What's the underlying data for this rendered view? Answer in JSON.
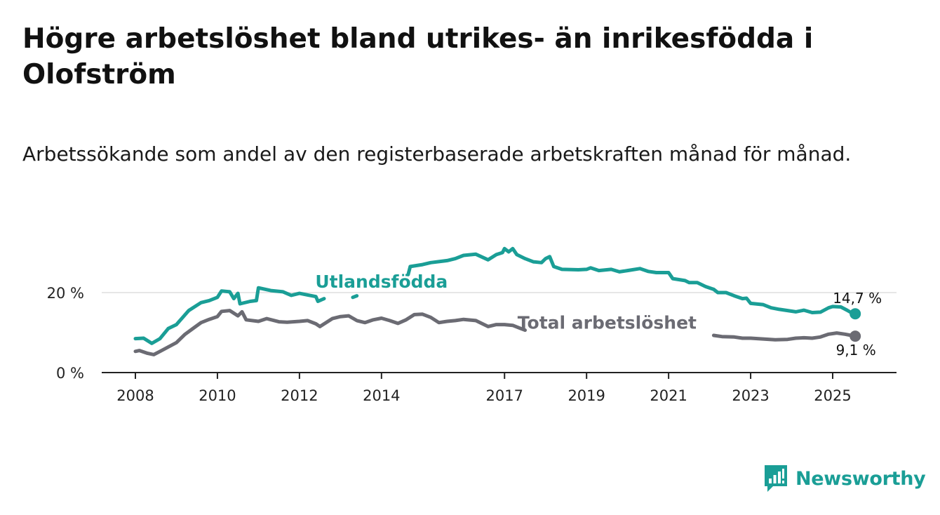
{
  "title": "Högre arbetslöshet bland utrikes- än inrikesfödda i Olofström",
  "subtitle": "Arbetssökande som andel av den registerbaserade arbetskraften månad för månad.",
  "brand": {
    "name": "Newsworthy",
    "icon": "bar-chart-logo-icon"
  },
  "colors": {
    "utlandsfodda": "#1a9e96",
    "total": "#6b6b73",
    "axis": "#222222",
    "grid": "#dddddd"
  },
  "chart_data": {
    "type": "line",
    "title": "Högre arbetslöshet bland utrikes- än inrikesfödda i Olofström",
    "xlabel": "",
    "ylabel": "",
    "xlim": [
      2007.9,
      2025.8
    ],
    "ylim": [
      0,
      30
    ],
    "x_ticks": [
      2008,
      2010,
      2012,
      2014,
      2017,
      2019,
      2021,
      2023,
      2025
    ],
    "x_tick_labels": [
      "2008",
      "2010",
      "2012",
      "2014",
      "2017",
      "2019",
      "2021",
      "2023",
      "2025"
    ],
    "y_ticks": [
      0,
      20
    ],
    "y_tick_labels": [
      "0 %",
      "20 %"
    ],
    "grid": true,
    "series": [
      {
        "name": "Utlandsfödda",
        "color": "#1a9e96",
        "end_label": "14,7 %",
        "points": [
          [
            2008.0,
            8.5
          ],
          [
            2008.2,
            8.6
          ],
          [
            2008.4,
            7.3
          ],
          [
            2008.6,
            8.5
          ],
          [
            2008.8,
            11.0
          ],
          [
            2009.0,
            12.0
          ],
          [
            2009.3,
            15.5
          ],
          [
            2009.6,
            17.5
          ],
          [
            2009.8,
            18.0
          ],
          [
            2010.0,
            18.8
          ],
          [
            2010.1,
            20.4
          ],
          [
            2010.3,
            20.2
          ],
          [
            2010.4,
            18.5
          ],
          [
            2010.5,
            19.8
          ],
          [
            2010.55,
            17.2
          ],
          [
            2010.8,
            17.8
          ],
          [
            2010.95,
            18.0
          ],
          [
            2011.0,
            21.2
          ],
          [
            2011.3,
            20.5
          ],
          [
            2011.6,
            20.2
          ],
          [
            2011.8,
            19.3
          ],
          [
            2012.0,
            19.8
          ],
          [
            2012.2,
            19.4
          ],
          [
            2012.4,
            19.0
          ],
          [
            2012.45,
            17.8
          ],
          [
            2012.6,
            18.5
          ]
        ],
        "segments": [
          [
            [
              2013.3,
              18.8
            ],
            [
              2013.4,
              19.2
            ]
          ],
          [
            [
              2014.65,
              24.5
            ],
            [
              2014.7,
              26.5
            ],
            [
              2015.0,
              27.0
            ],
            [
              2015.2,
              27.5
            ],
            [
              2015.6,
              28.0
            ],
            [
              2015.8,
              28.5
            ],
            [
              2016.0,
              29.3
            ],
            [
              2016.3,
              29.6
            ],
            [
              2016.6,
              28.2
            ],
            [
              2016.8,
              29.5
            ],
            [
              2016.95,
              30.0
            ],
            [
              2017.0,
              31.0
            ],
            [
              2017.1,
              30.2
            ],
            [
              2017.2,
              31.0
            ],
            [
              2017.3,
              29.5
            ],
            [
              2017.5,
              28.5
            ],
            [
              2017.7,
              27.7
            ],
            [
              2017.9,
              27.5
            ],
            [
              2018.0,
              28.5
            ],
            [
              2018.1,
              29.0
            ],
            [
              2018.2,
              26.5
            ],
            [
              2018.4,
              25.8
            ],
            [
              2018.8,
              25.7
            ],
            [
              2019.0,
              25.8
            ],
            [
              2019.1,
              26.2
            ],
            [
              2019.3,
              25.5
            ],
            [
              2019.6,
              25.8
            ],
            [
              2019.8,
              25.2
            ],
            [
              2020.0,
              25.5
            ],
            [
              2020.3,
              26.0
            ],
            [
              2020.5,
              25.3
            ],
            [
              2020.7,
              25.0
            ],
            [
              2021.0,
              25.0
            ],
            [
              2021.1,
              23.5
            ],
            [
              2021.4,
              23.0
            ],
            [
              2021.5,
              22.5
            ],
            [
              2021.7,
              22.5
            ],
            [
              2021.9,
              21.5
            ],
            [
              2022.1,
              20.8
            ],
            [
              2022.2,
              20.0
            ],
            [
              2022.4,
              20.0
            ],
            [
              2022.6,
              19.2
            ],
            [
              2022.8,
              18.5
            ],
            [
              2022.9,
              18.6
            ],
            [
              2023.0,
              17.3
            ],
            [
              2023.3,
              17.0
            ],
            [
              2023.5,
              16.2
            ],
            [
              2023.7,
              15.8
            ],
            [
              2023.9,
              15.5
            ],
            [
              2024.1,
              15.2
            ],
            [
              2024.3,
              15.6
            ],
            [
              2024.5,
              15.0
            ],
            [
              2024.7,
              15.1
            ],
            [
              2024.9,
              16.2
            ],
            [
              2025.0,
              16.5
            ],
            [
              2025.2,
              16.4
            ],
            [
              2025.35,
              15.6
            ],
            [
              2025.45,
              15.0
            ],
            [
              2025.55,
              14.7
            ]
          ]
        ]
      },
      {
        "name": "Total arbetslöshet",
        "color": "#6b6b73",
        "end_label": "9,1 %",
        "points": [
          [
            2008.0,
            5.3
          ],
          [
            2008.1,
            5.5
          ],
          [
            2008.3,
            4.8
          ],
          [
            2008.45,
            4.5
          ],
          [
            2008.6,
            5.3
          ],
          [
            2009.0,
            7.5
          ],
          [
            2009.2,
            9.5
          ],
          [
            2009.4,
            11.0
          ],
          [
            2009.6,
            12.5
          ],
          [
            2009.8,
            13.3
          ],
          [
            2010.0,
            14.0
          ],
          [
            2010.1,
            15.3
          ],
          [
            2010.3,
            15.5
          ],
          [
            2010.5,
            14.2
          ],
          [
            2010.6,
            15.2
          ],
          [
            2010.7,
            13.2
          ],
          [
            2011.0,
            12.8
          ],
          [
            2011.2,
            13.5
          ],
          [
            2011.5,
            12.7
          ],
          [
            2011.7,
            12.6
          ],
          [
            2012.0,
            12.8
          ],
          [
            2012.2,
            13.0
          ],
          [
            2012.4,
            12.2
          ],
          [
            2012.5,
            11.5
          ],
          [
            2012.8,
            13.5
          ],
          [
            2013.0,
            14.0
          ],
          [
            2013.2,
            14.2
          ],
          [
            2013.4,
            13.0
          ],
          [
            2013.6,
            12.5
          ],
          [
            2013.8,
            13.2
          ],
          [
            2014.0,
            13.6
          ],
          [
            2014.2,
            13.0
          ],
          [
            2014.4,
            12.3
          ],
          [
            2014.6,
            13.2
          ],
          [
            2014.8,
            14.5
          ],
          [
            2015.0,
            14.6
          ],
          [
            2015.2,
            13.8
          ],
          [
            2015.4,
            12.5
          ],
          [
            2015.6,
            12.8
          ],
          [
            2015.8,
            13.0
          ],
          [
            2016.0,
            13.3
          ],
          [
            2016.3,
            13.0
          ],
          [
            2016.6,
            11.5
          ],
          [
            2016.8,
            12.0
          ],
          [
            2017.0,
            12.0
          ],
          [
            2017.2,
            11.8
          ],
          [
            2017.4,
            11.0
          ],
          [
            2017.5,
            10.6
          ]
        ],
        "segments": [
          [
            [
              2022.1,
              9.3
            ],
            [
              2022.3,
              9.0
            ],
            [
              2022.6,
              8.9
            ],
            [
              2022.8,
              8.6
            ],
            [
              2023.0,
              8.6
            ],
            [
              2023.3,
              8.4
            ],
            [
              2023.6,
              8.2
            ],
            [
              2023.9,
              8.3
            ],
            [
              2024.1,
              8.6
            ],
            [
              2024.3,
              8.7
            ],
            [
              2024.5,
              8.6
            ],
            [
              2024.7,
              8.9
            ],
            [
              2024.9,
              9.6
            ],
            [
              2025.1,
              9.9
            ],
            [
              2025.3,
              9.6
            ],
            [
              2025.45,
              9.3
            ],
            [
              2025.55,
              9.1
            ]
          ]
        ]
      }
    ],
    "annotations": [
      {
        "text": "Utlandsfödda",
        "series": "Utlandsfödda",
        "x": 2014.0,
        "y": 21.2
      },
      {
        "text": "Total arbetslöshet",
        "series": "Total arbetslöshet",
        "x": 2019.5,
        "y": 11.0
      }
    ]
  }
}
